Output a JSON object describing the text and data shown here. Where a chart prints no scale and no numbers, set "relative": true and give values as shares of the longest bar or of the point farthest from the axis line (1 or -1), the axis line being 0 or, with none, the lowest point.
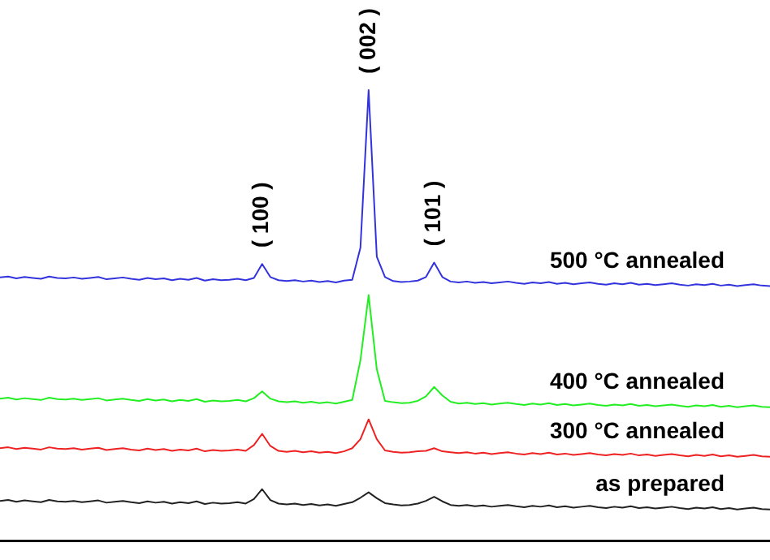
{
  "chart_data": {
    "type": "line",
    "relative": true,
    "tick_labels": false,
    "grid": false,
    "legend": false,
    "marker": "none",
    "line_style": "solid",
    "categories": [
      null,
      null,
      null,
      null,
      null,
      null,
      null,
      null,
      null,
      null,
      null,
      null,
      null,
      null,
      null,
      null,
      null,
      null,
      null,
      null,
      null,
      null,
      null,
      null,
      null,
      null,
      null,
      null,
      null,
      null,
      null,
      null,
      null,
      null,
      null,
      null,
      null,
      null,
      null,
      null,
      null,
      null,
      null,
      null,
      null,
      null,
      null,
      null,
      null,
      null,
      null,
      null,
      null,
      null,
      null,
      null,
      null,
      null,
      null,
      null,
      null,
      null,
      null,
      null,
      null,
      null,
      null,
      null,
      null,
      null,
      null,
      null,
      null,
      null,
      null,
      null,
      null,
      null,
      null,
      null,
      null,
      null,
      null,
      null,
      null,
      null,
      null,
      null,
      null,
      null,
      null,
      null,
      null,
      null,
      null
    ],
    "annotations": [
      "( 100 )",
      "( 002 )",
      "( 101 )"
    ],
    "series": [
      {
        "name": "as prepared",
        "color": "#222222",
        "values": [
          0.088,
          0.09,
          0.086,
          0.089,
          0.087,
          0.085,
          0.09,
          0.087,
          0.086,
          0.088,
          0.085,
          0.087,
          0.089,
          0.084,
          0.086,
          0.088,
          0.085,
          0.083,
          0.087,
          0.084,
          0.086,
          0.082,
          0.085,
          0.083,
          0.087,
          0.081,
          0.084,
          0.082,
          0.083,
          0.085,
          0.082,
          0.092,
          0.114,
          0.09,
          0.082,
          0.08,
          0.082,
          0.079,
          0.081,
          0.078,
          0.08,
          0.077,
          0.081,
          0.085,
          0.095,
          0.107,
          0.094,
          0.083,
          0.08,
          0.078,
          0.079,
          0.082,
          0.088,
          0.097,
          0.087,
          0.079,
          0.077,
          0.079,
          0.076,
          0.078,
          0.075,
          0.077,
          0.079,
          0.076,
          0.074,
          0.077,
          0.075,
          0.078,
          0.074,
          0.076,
          0.073,
          0.075,
          0.077,
          0.074,
          0.072,
          0.075,
          0.073,
          0.076,
          0.072,
          0.074,
          0.071,
          0.073,
          0.075,
          0.072,
          0.07,
          0.073,
          0.071,
          0.074,
          0.07,
          0.072,
          0.069,
          0.071,
          0.073,
          0.07,
          0.069
        ]
      },
      {
        "name": "300 °C annealed",
        "color": "#ee2222",
        "values": [
          0.205,
          0.207,
          0.203,
          0.206,
          0.204,
          0.202,
          0.207,
          0.204,
          0.203,
          0.205,
          0.202,
          0.204,
          0.206,
          0.201,
          0.203,
          0.205,
          0.202,
          0.2,
          0.204,
          0.201,
          0.203,
          0.199,
          0.202,
          0.2,
          0.204,
          0.198,
          0.201,
          0.199,
          0.2,
          0.202,
          0.199,
          0.212,
          0.237,
          0.21,
          0.199,
          0.197,
          0.199,
          0.196,
          0.198,
          0.195,
          0.197,
          0.194,
          0.198,
          0.205,
          0.225,
          0.269,
          0.225,
          0.2,
          0.197,
          0.195,
          0.196,
          0.198,
          0.199,
          0.205,
          0.198,
          0.196,
          0.194,
          0.196,
          0.193,
          0.195,
          0.192,
          0.194,
          0.196,
          0.193,
          0.191,
          0.194,
          0.192,
          0.195,
          0.191,
          0.193,
          0.19,
          0.192,
          0.194,
          0.191,
          0.189,
          0.192,
          0.19,
          0.193,
          0.189,
          0.191,
          0.188,
          0.19,
          0.192,
          0.189,
          0.187,
          0.19,
          0.188,
          0.191,
          0.187,
          0.189,
          0.186,
          0.188,
          0.19,
          0.187,
          0.186
        ]
      },
      {
        "name": "400 °C annealed",
        "color": "#22ee22",
        "values": [
          0.315,
          0.317,
          0.313,
          0.316,
          0.314,
          0.312,
          0.317,
          0.314,
          0.313,
          0.315,
          0.312,
          0.314,
          0.316,
          0.311,
          0.313,
          0.315,
          0.312,
          0.31,
          0.314,
          0.311,
          0.313,
          0.309,
          0.312,
          0.31,
          0.314,
          0.308,
          0.311,
          0.309,
          0.31,
          0.312,
          0.309,
          0.316,
          0.331,
          0.315,
          0.309,
          0.307,
          0.309,
          0.306,
          0.308,
          0.305,
          0.307,
          0.304,
          0.308,
          0.312,
          0.4,
          0.545,
          0.38,
          0.31,
          0.307,
          0.305,
          0.306,
          0.31,
          0.32,
          0.341,
          0.322,
          0.308,
          0.304,
          0.306,
          0.303,
          0.305,
          0.302,
          0.304,
          0.306,
          0.303,
          0.301,
          0.304,
          0.302,
          0.305,
          0.301,
          0.303,
          0.3,
          0.302,
          0.304,
          0.301,
          0.299,
          0.302,
          0.3,
          0.303,
          0.299,
          0.301,
          0.298,
          0.3,
          0.302,
          0.299,
          0.297,
          0.3,
          0.298,
          0.301,
          0.297,
          0.299,
          0.296,
          0.298,
          0.3,
          0.297,
          0.296
        ]
      },
      {
        "name": "500 °C annealed",
        "color": "#3333dd",
        "values": [
          0.584,
          0.586,
          0.582,
          0.585,
          0.583,
          0.581,
          0.586,
          0.583,
          0.582,
          0.584,
          0.581,
          0.583,
          0.585,
          0.58,
          0.582,
          0.584,
          0.581,
          0.579,
          0.583,
          0.58,
          0.582,
          0.578,
          0.581,
          0.579,
          0.583,
          0.577,
          0.58,
          0.578,
          0.579,
          0.581,
          0.578,
          0.583,
          0.614,
          0.585,
          0.578,
          0.576,
          0.578,
          0.575,
          0.577,
          0.574,
          0.576,
          0.573,
          0.577,
          0.579,
          0.65,
          1,
          0.63,
          0.585,
          0.576,
          0.574,
          0.575,
          0.577,
          0.585,
          0.617,
          0.585,
          0.575,
          0.573,
          0.575,
          0.572,
          0.574,
          0.571,
          0.573,
          0.575,
          0.572,
          0.57,
          0.573,
          0.571,
          0.574,
          0.57,
          0.572,
          0.569,
          0.571,
          0.573,
          0.57,
          0.568,
          0.571,
          0.569,
          0.572,
          0.568,
          0.57,
          0.567,
          0.569,
          0.571,
          0.568,
          0.566,
          0.569,
          0.567,
          0.57,
          0.566,
          0.568,
          0.565,
          0.567,
          0.569,
          0.566,
          0.565
        ]
      }
    ]
  }
}
